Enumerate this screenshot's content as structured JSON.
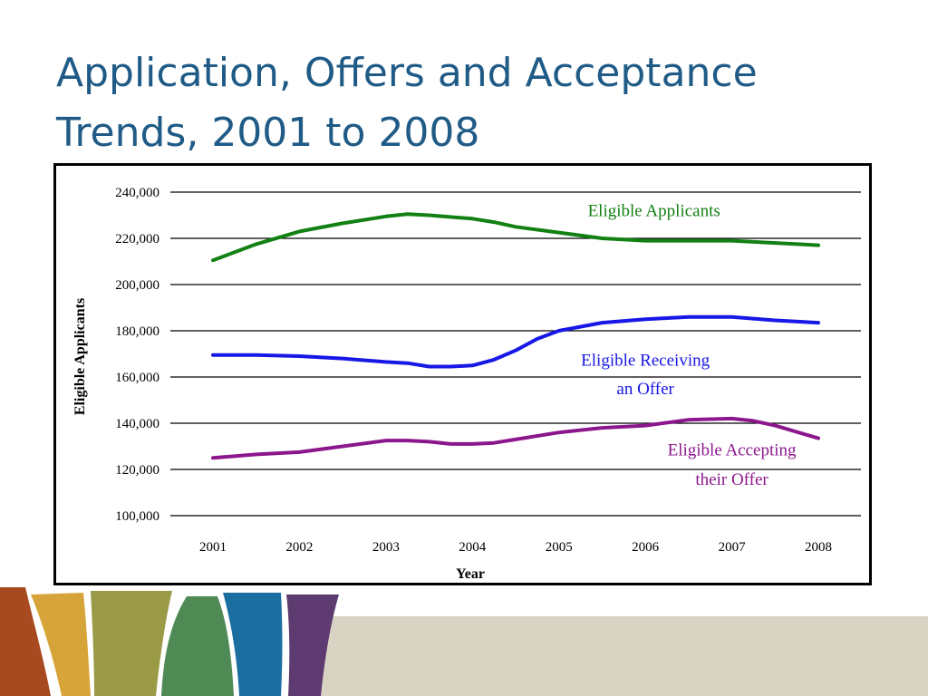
{
  "slide": {
    "title_line1": "Application, Offers and Acceptance",
    "title_line2": "Trends, 2001 to 2008"
  },
  "chart_data": {
    "type": "line",
    "title": "",
    "xlabel": "Year",
    "ylabel": "Eligible Applicants",
    "x": [
      "2001",
      "2002",
      "2003",
      "2004",
      "2005",
      "2006",
      "2007",
      "2008"
    ],
    "ylim": [
      100000,
      240000
    ],
    "yticks": [
      100000,
      120000,
      140000,
      160000,
      180000,
      200000,
      220000,
      240000
    ],
    "ytick_labels": [
      "100,000",
      "120,000",
      "140,000",
      "160,000",
      "180,000",
      "200,000",
      "220,000",
      "240,000"
    ],
    "grid": true,
    "legend": "inline labels next to lines",
    "series": [
      {
        "name_line1": "Eligible Applicants",
        "name_line2": "",
        "color": "#138013",
        "points": [
          [
            2001,
            210500
          ],
          [
            2001.5,
            217500
          ],
          [
            2002,
            223000
          ],
          [
            2002.5,
            226500
          ],
          [
            2003,
            229500
          ],
          [
            2003.25,
            230500
          ],
          [
            2003.5,
            230000
          ],
          [
            2004,
            228500
          ],
          [
            2004.25,
            227000
          ],
          [
            2004.5,
            225000
          ],
          [
            2005,
            222500
          ],
          [
            2005.5,
            220000
          ],
          [
            2006,
            219000
          ],
          [
            2007,
            219000
          ],
          [
            2007.5,
            218000
          ],
          [
            2008,
            217000
          ]
        ]
      },
      {
        "name_line1": "Eligible Receiving",
        "name_line2": "an Offer",
        "color": "#1717e6",
        "points": [
          [
            2001,
            169500
          ],
          [
            2001.5,
            169500
          ],
          [
            2002,
            169000
          ],
          [
            2002.5,
            168000
          ],
          [
            2003,
            166500
          ],
          [
            2003.25,
            166000
          ],
          [
            2003.5,
            164500
          ],
          [
            2003.75,
            164500
          ],
          [
            2004,
            165000
          ],
          [
            2004.25,
            167500
          ],
          [
            2004.5,
            171500
          ],
          [
            2004.75,
            176500
          ],
          [
            2005,
            180000
          ],
          [
            2005.5,
            183500
          ],
          [
            2006,
            185000
          ],
          [
            2006.5,
            186000
          ],
          [
            2007,
            186000
          ],
          [
            2007.5,
            184500
          ],
          [
            2008,
            183500
          ]
        ]
      },
      {
        "name_line1": "Eligible Accepting",
        "name_line2": "their Offer",
        "color": "#8c178c",
        "points": [
          [
            2001,
            125000
          ],
          [
            2001.5,
            126500
          ],
          [
            2002,
            127500
          ],
          [
            2002.5,
            130000
          ],
          [
            2003,
            132500
          ],
          [
            2003.25,
            132500
          ],
          [
            2003.5,
            132000
          ],
          [
            2003.75,
            131000
          ],
          [
            2004,
            131000
          ],
          [
            2004.25,
            131500
          ],
          [
            2004.5,
            133000
          ],
          [
            2005,
            136000
          ],
          [
            2005.5,
            138000
          ],
          [
            2006,
            139000
          ],
          [
            2006.5,
            141500
          ],
          [
            2007,
            142000
          ],
          [
            2007.25,
            141000
          ],
          [
            2007.5,
            139000
          ],
          [
            2008,
            133500
          ]
        ]
      }
    ]
  },
  "decoration": {
    "band_colors": [
      "#a84a1f",
      "#d7a43a",
      "#9b9a47",
      "#4f8a55",
      "#1b6fa0",
      "#5d3a70",
      "#d8d3c3"
    ]
  }
}
